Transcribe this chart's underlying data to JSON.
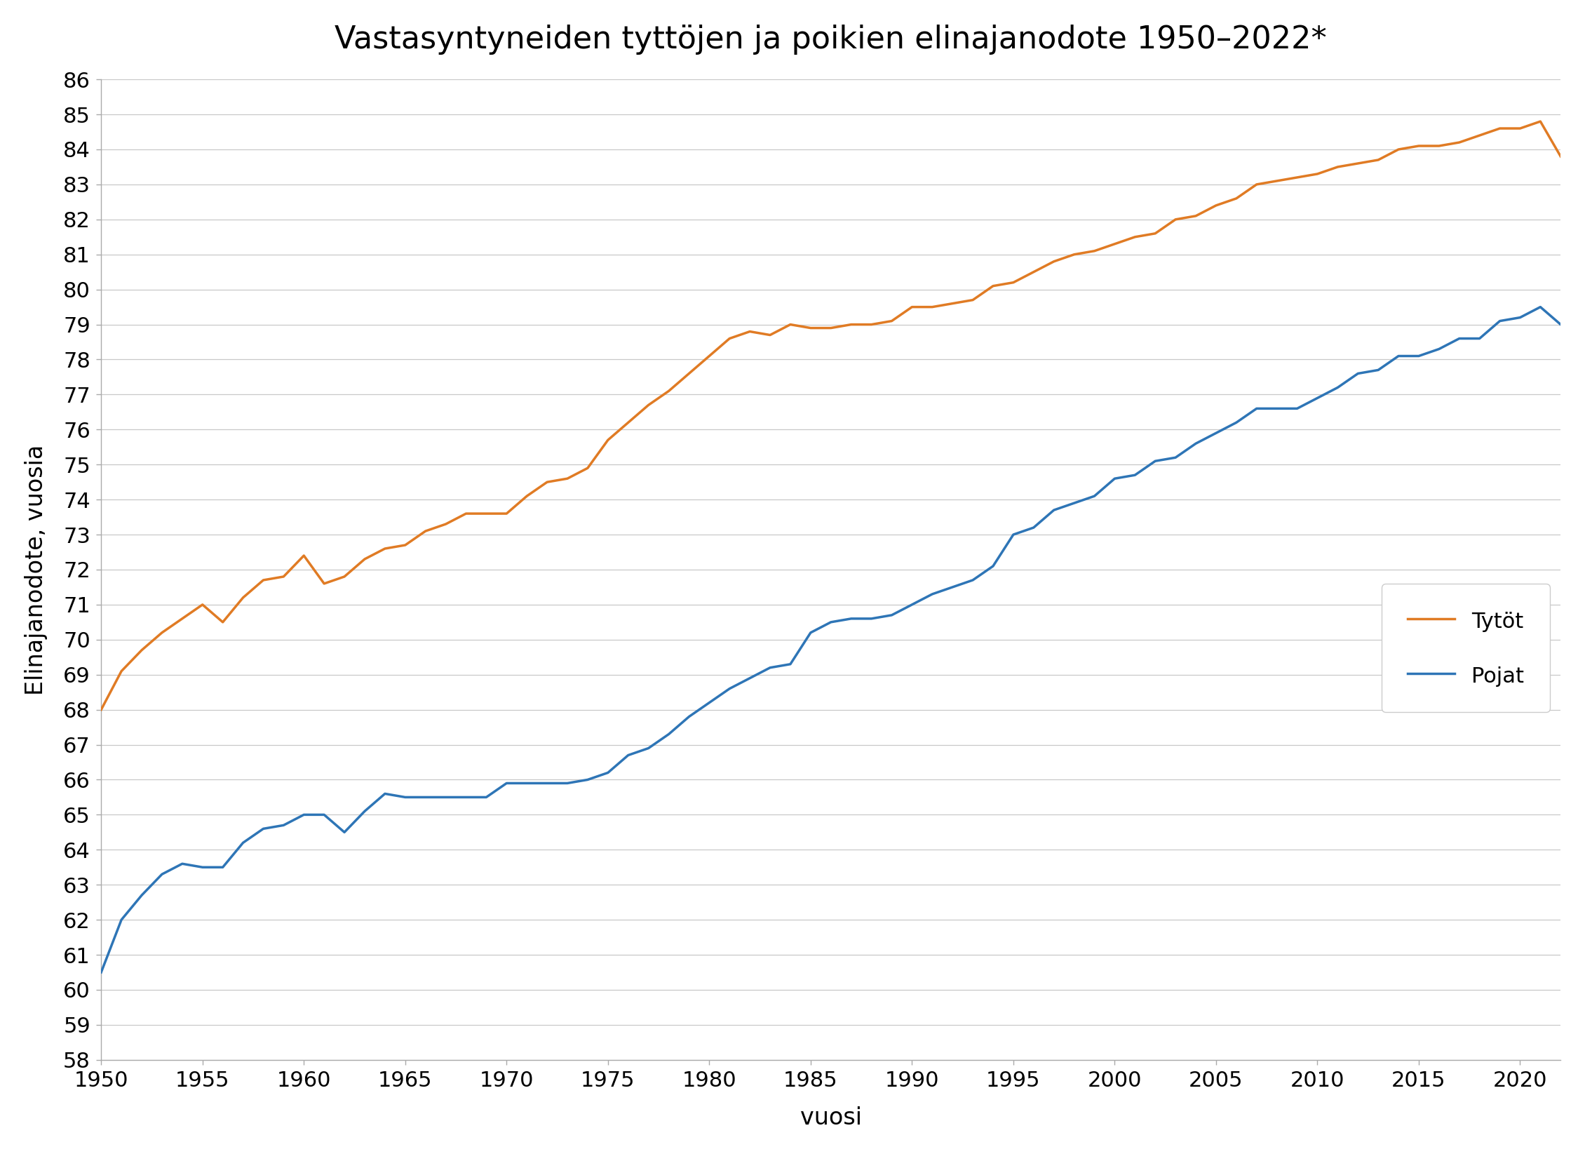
{
  "title": "Vastasyntyneiden tyttöjen ja poikien elinajanodote 1950–2022*",
  "xlabel": "vuosi",
  "ylabel": "Elinajanodote, vuosia",
  "ylim": [
    58,
    86
  ],
  "yticks": [
    58,
    59,
    60,
    61,
    62,
    63,
    64,
    65,
    66,
    67,
    68,
    69,
    70,
    71,
    72,
    73,
    74,
    75,
    76,
    77,
    78,
    79,
    80,
    81,
    82,
    83,
    84,
    85,
    86
  ],
  "xlim": [
    1950,
    2022
  ],
  "xticks": [
    1950,
    1955,
    1960,
    1965,
    1970,
    1975,
    1980,
    1985,
    1990,
    1995,
    2000,
    2005,
    2010,
    2015,
    2020
  ],
  "girls_color": "#E07B24",
  "boys_color": "#2E75B6",
  "background_color": "#ffffff",
  "grid_color": "#c8c8c8",
  "legend_labels": [
    "Tytöt",
    "Pojat"
  ],
  "years": [
    1950,
    1951,
    1952,
    1953,
    1954,
    1955,
    1956,
    1957,
    1958,
    1959,
    1960,
    1961,
    1962,
    1963,
    1964,
    1965,
    1966,
    1967,
    1968,
    1969,
    1970,
    1971,
    1972,
    1973,
    1974,
    1975,
    1976,
    1977,
    1978,
    1979,
    1980,
    1981,
    1982,
    1983,
    1984,
    1985,
    1986,
    1987,
    1988,
    1989,
    1990,
    1991,
    1992,
    1993,
    1994,
    1995,
    1996,
    1997,
    1998,
    1999,
    2000,
    2001,
    2002,
    2003,
    2004,
    2005,
    2006,
    2007,
    2008,
    2009,
    2010,
    2011,
    2012,
    2013,
    2014,
    2015,
    2016,
    2017,
    2018,
    2019,
    2020,
    2021,
    2022
  ],
  "girls": [
    68.0,
    69.1,
    69.7,
    70.2,
    70.6,
    71.0,
    70.5,
    71.2,
    71.7,
    71.8,
    72.4,
    71.6,
    71.8,
    72.3,
    72.6,
    72.7,
    73.1,
    73.3,
    73.6,
    73.6,
    73.6,
    74.1,
    74.5,
    74.6,
    74.9,
    75.7,
    76.2,
    76.7,
    77.1,
    77.6,
    78.1,
    78.6,
    78.8,
    78.7,
    79.0,
    78.9,
    78.9,
    79.0,
    79.0,
    79.1,
    79.5,
    79.5,
    79.6,
    79.7,
    80.1,
    80.2,
    80.5,
    80.8,
    81.0,
    81.1,
    81.3,
    81.5,
    81.6,
    82.0,
    82.1,
    82.4,
    82.6,
    83.0,
    83.1,
    83.2,
    83.3,
    83.5,
    83.6,
    83.7,
    84.0,
    84.1,
    84.1,
    84.2,
    84.4,
    84.6,
    84.6,
    84.8,
    83.8
  ],
  "boys": [
    60.5,
    62.0,
    62.7,
    63.3,
    63.6,
    63.5,
    63.5,
    64.2,
    64.6,
    64.7,
    65.0,
    65.0,
    64.5,
    65.1,
    65.6,
    65.5,
    65.5,
    65.5,
    65.5,
    65.5,
    65.9,
    65.9,
    65.9,
    65.9,
    66.0,
    66.2,
    66.7,
    66.9,
    67.3,
    67.8,
    68.2,
    68.6,
    68.9,
    69.2,
    69.3,
    70.2,
    70.5,
    70.6,
    70.6,
    70.7,
    71.0,
    71.3,
    71.5,
    71.7,
    72.1,
    73.0,
    73.2,
    73.7,
    73.9,
    74.1,
    74.6,
    74.7,
    75.1,
    75.2,
    75.6,
    75.9,
    76.2,
    76.6,
    76.6,
    76.6,
    76.9,
    77.2,
    77.6,
    77.7,
    78.1,
    78.1,
    78.3,
    78.6,
    78.6,
    79.1,
    79.2,
    79.5,
    79.0
  ]
}
